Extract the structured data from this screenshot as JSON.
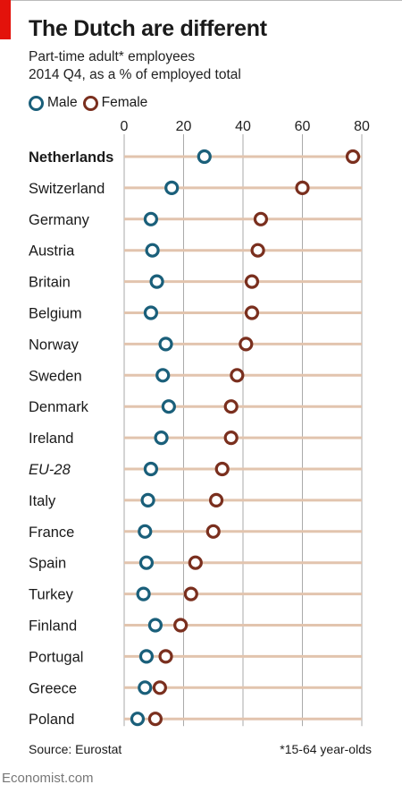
{
  "title": "The Dutch are different",
  "subtitle_line1": "Part-time adult* employees",
  "subtitle_line2": "2014 Q4, as a % of employed total",
  "source": "Source: Eurostat",
  "footnote": "*15-64 year-olds",
  "brand": "Economist.com",
  "colors": {
    "male": "#1a5f7a",
    "female": "#7a2f1e",
    "accent": "#e3120b",
    "row_line": "#e2c4ae",
    "grid": "#aaaaaa"
  },
  "chart_data": {
    "type": "scatter",
    "xlim": [
      0,
      80
    ],
    "x_ticks": [
      "0",
      "20",
      "40",
      "60",
      "80"
    ],
    "legend_position": "top-left",
    "grid": true,
    "categories": [
      "Netherlands",
      "Switzerland",
      "Germany",
      "Austria",
      "Britain",
      "Belgium",
      "Norway",
      "Sweden",
      "Denmark",
      "Ireland",
      "EU-28",
      "Italy",
      "France",
      "Spain",
      "Turkey",
      "Finland",
      "Portugal",
      "Greece",
      "Poland"
    ],
    "series": [
      {
        "name": "Male",
        "values": [
          27,
          16,
          9,
          9.5,
          11,
          9,
          14,
          13,
          15,
          12.5,
          9,
          8,
          7,
          7.5,
          6.5,
          10.5,
          7.5,
          7,
          4.5
        ]
      },
      {
        "name": "Female",
        "values": [
          77,
          60,
          46,
          45,
          43,
          43,
          41,
          38,
          36,
          36,
          33,
          31,
          30,
          24,
          22.5,
          19,
          14,
          12,
          10.5
        ]
      }
    ]
  }
}
